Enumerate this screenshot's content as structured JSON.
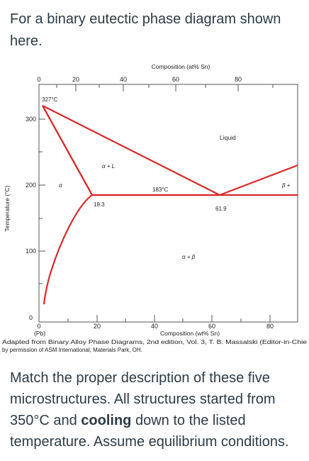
{
  "intro": {
    "text": "For a binary eutectic phase diagram shown here."
  },
  "diagram": {
    "top_axis_title": "Composition (at% Sn)",
    "top_ticks": [
      "0",
      "20",
      "40",
      "60",
      "80"
    ],
    "bottom_ticks": [
      "0",
      "20",
      "40",
      "60",
      "80"
    ],
    "left_ticks": [
      "300",
      "200",
      "100",
      "0"
    ],
    "y_label": "Temperature (°C)",
    "x_left_note": "(Pb)",
    "bottom_axis_title": "Composition (wt% Sn)",
    "labels": {
      "melting_point": "327°C",
      "liquid": "Liquid",
      "alpha_plus_liquid": "α + L",
      "alpha": "α",
      "eutectic_temp": "183°C",
      "beta_plus_liquid": "β +",
      "alpha_comp": "18.3",
      "eutectic_comp": "61.9",
      "alpha_plus_beta": "α + β"
    },
    "credit_line1": "Adapted from Binary Alloy Phase Diagrams, 2nd edition, Vol. 3, T. B. Massalski (Editor-in-Chie",
    "credit_line2": "by permission of ASM International, Materials Park, OH.",
    "line_color": "#d62b2b"
  },
  "question": {
    "text_before": "Match the proper description of these five microstructures. All structures started from 350°C and ",
    "bold": "cooling",
    "text_after": " down to the listed temperature. Assume equilibrium conditions."
  }
}
